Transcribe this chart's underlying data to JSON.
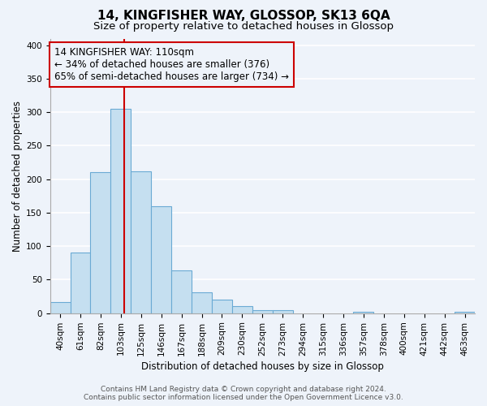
{
  "title": "14, KINGFISHER WAY, GLOSSOP, SK13 6QA",
  "subtitle": "Size of property relative to detached houses in Glossop",
  "xlabel": "Distribution of detached houses by size in Glossop",
  "ylabel": "Number of detached properties",
  "bin_labels": [
    "40sqm",
    "61sqm",
    "82sqm",
    "103sqm",
    "125sqm",
    "146sqm",
    "167sqm",
    "188sqm",
    "209sqm",
    "230sqm",
    "252sqm",
    "273sqm",
    "294sqm",
    "315sqm",
    "336sqm",
    "357sqm",
    "378sqm",
    "400sqm",
    "421sqm",
    "442sqm",
    "463sqm"
  ],
  "bar_values": [
    17,
    90,
    210,
    305,
    212,
    160,
    64,
    31,
    20,
    10,
    5,
    4,
    0,
    0,
    0,
    2,
    0,
    0,
    0,
    0,
    2
  ],
  "bar_color": "#c5dff0",
  "bar_edge_color": "#6aaad4",
  "vline_x_index": 3,
  "vline_x_offset": 0.15,
  "vline_color": "#cc0000",
  "annotation_title": "14 KINGFISHER WAY: 110sqm",
  "annotation_line1": "← 34% of detached houses are smaller (376)",
  "annotation_line2": "65% of semi-detached houses are larger (734) →",
  "annotation_box_edge": "#cc0000",
  "annotation_box_bg": "#eef3fa",
  "ylim": [
    0,
    410
  ],
  "yticks": [
    0,
    50,
    100,
    150,
    200,
    250,
    300,
    350,
    400
  ],
  "footer_line1": "Contains HM Land Registry data © Crown copyright and database right 2024.",
  "footer_line2": "Contains public sector information licensed under the Open Government Licence v3.0.",
  "bg_color": "#eef3fa",
  "grid_color": "#ffffff",
  "title_fontsize": 11,
  "subtitle_fontsize": 9.5,
  "axis_label_fontsize": 8.5,
  "tick_fontsize": 7.5,
  "annotation_title_fontsize": 8.5,
  "annotation_text_fontsize": 8.5,
  "footer_fontsize": 6.5
}
